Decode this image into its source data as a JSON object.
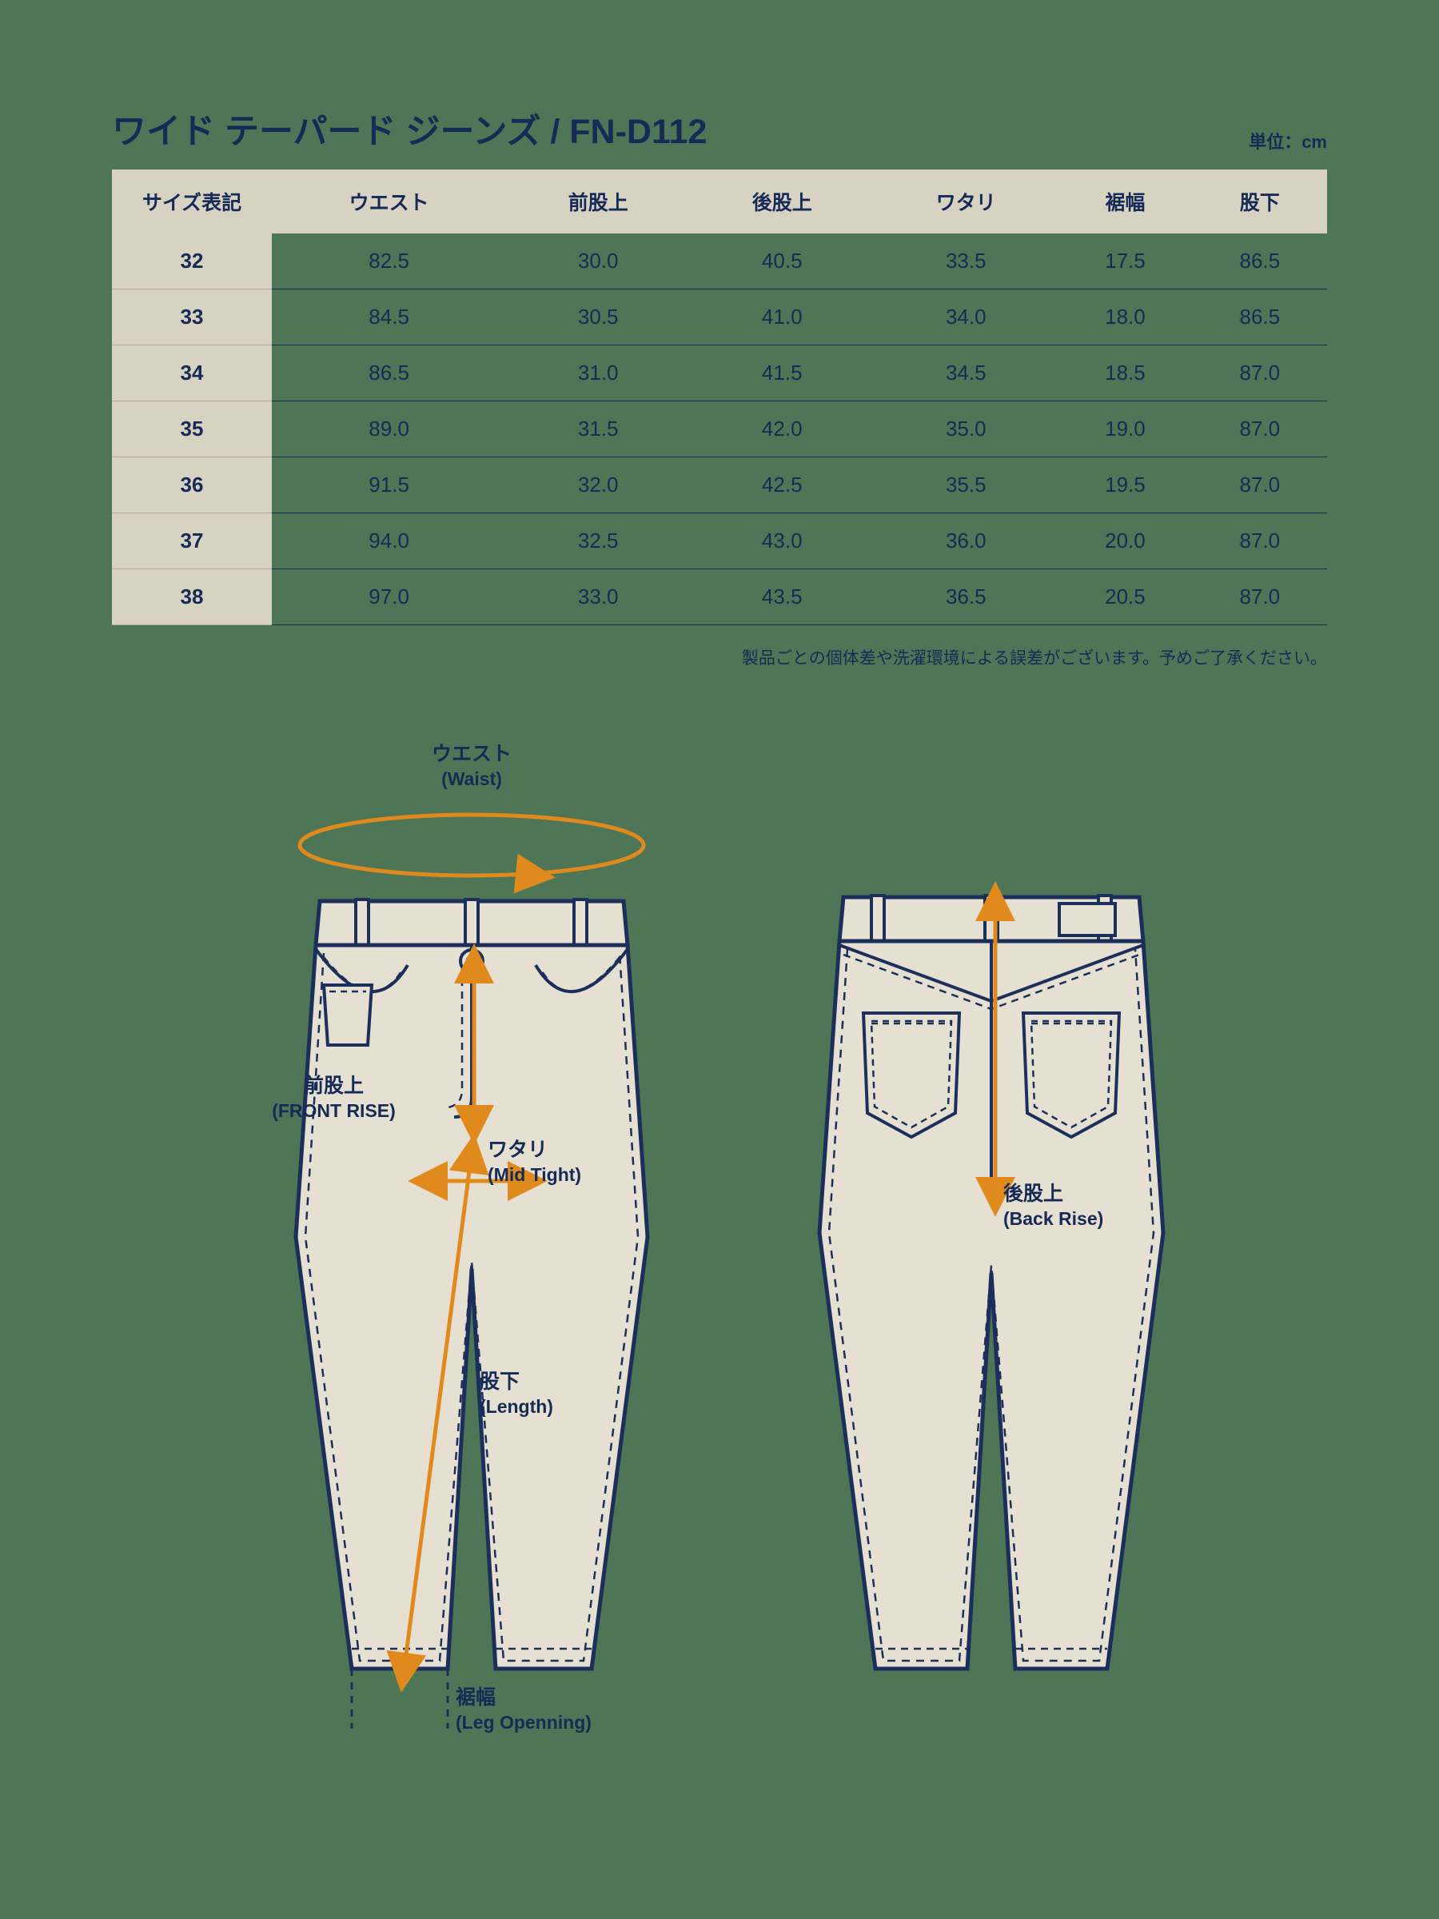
{
  "title": "ワイド テーパード ジーンズ / FN-D112",
  "unit_label": "単位：cm",
  "footnote": "製品ごとの個体差や洗濯環境による誤差がございます。予めご了承ください。",
  "colors": {
    "background": "#4e7555",
    "text_navy": "#162a56",
    "header_bg": "#d8d2c3",
    "arrow_orange": "#e08a1e",
    "outline_navy": "#1b2f5a",
    "fill_cream": "#e6e0d2"
  },
  "table": {
    "columns": [
      "サイズ表記",
      "ウエスト",
      "前股上",
      "後股上",
      "ワタリ",
      "裾幅",
      "股下"
    ],
    "rows": [
      [
        "32",
        "82.5",
        "30.0",
        "40.5",
        "33.5",
        "17.5",
        "86.5"
      ],
      [
        "33",
        "84.5",
        "30.5",
        "41.0",
        "34.0",
        "18.0",
        "86.5"
      ],
      [
        "34",
        "86.5",
        "31.0",
        "41.5",
        "34.5",
        "18.5",
        "87.0"
      ],
      [
        "35",
        "89.0",
        "31.5",
        "42.0",
        "35.0",
        "19.0",
        "87.0"
      ],
      [
        "36",
        "91.5",
        "32.0",
        "42.5",
        "35.5",
        "19.5",
        "87.0"
      ],
      [
        "37",
        "94.0",
        "32.5",
        "43.0",
        "36.0",
        "20.0",
        "87.0"
      ],
      [
        "38",
        "97.0",
        "33.0",
        "43.5",
        "36.5",
        "20.5",
        "87.0"
      ]
    ]
  },
  "diagram": {
    "labels": {
      "waist": {
        "jp": "ウエスト",
        "en": "(Waist)"
      },
      "front_rise": {
        "jp": "前股上",
        "en": "(FRONT RISE)"
      },
      "mid_thigh": {
        "jp": "ワタリ",
        "en": "(Mid Tight)"
      },
      "length": {
        "jp": "股下",
        "en": "(Length)"
      },
      "leg_opening": {
        "jp": "裾幅",
        "en": "(Leg Openning)"
      },
      "back_rise": {
        "jp": "後股上",
        "en": "(Back Rise)"
      }
    }
  }
}
